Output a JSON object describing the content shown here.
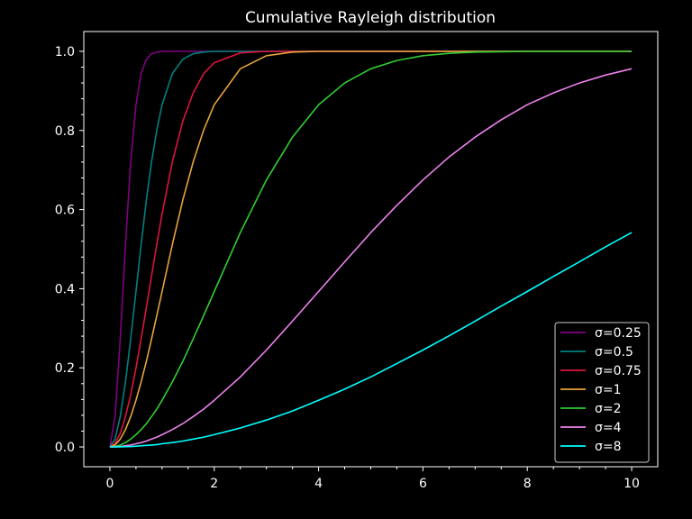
{
  "chart_data": {
    "type": "line",
    "title": "Cumulative Rayleigh distribution",
    "xlabel": "",
    "ylabel": "",
    "xlim": [
      -0.5,
      10.5
    ],
    "ylim": [
      -0.05,
      1.05
    ],
    "x_ticks": [
      0,
      2,
      4,
      6,
      8,
      10
    ],
    "y_ticks": [
      0.0,
      0.2,
      0.4,
      0.6,
      0.8,
      1.0
    ],
    "x_tick_labels": [
      "0",
      "2",
      "4",
      "6",
      "8",
      "10"
    ],
    "y_tick_labels": [
      "0.0",
      "0.2",
      "0.4",
      "0.6",
      "0.8",
      "1.0"
    ],
    "grid": false,
    "legend_position": "lower-right",
    "x": [
      0,
      0.1,
      0.2,
      0.3,
      0.4,
      0.5,
      0.6,
      0.7,
      0.8,
      0.9,
      1.0,
      1.2,
      1.4,
      1.6,
      1.8,
      2.0,
      2.5,
      3.0,
      3.5,
      4.0,
      4.5,
      5.0,
      5.5,
      6.0,
      6.5,
      7.0,
      7.5,
      8.0,
      8.5,
      9.0,
      9.5,
      10.0
    ],
    "series": [
      {
        "name": "σ=0.25",
        "color": "#800080",
        "values": [
          0.0,
          0.077,
          0.274,
          0.513,
          0.722,
          0.865,
          0.944,
          0.98,
          0.994,
          0.998,
          1.0,
          1.0,
          1.0,
          1.0,
          1.0,
          1.0,
          1.0,
          1.0,
          1.0,
          1.0,
          1.0,
          1.0,
          1.0,
          1.0,
          1.0,
          1.0,
          1.0,
          1.0,
          1.0,
          1.0,
          1.0,
          1.0
        ]
      },
      {
        "name": "σ=0.5",
        "color": "#008080",
        "values": [
          0.0,
          0.02,
          0.077,
          0.165,
          0.274,
          0.393,
          0.513,
          0.625,
          0.722,
          0.802,
          0.865,
          0.944,
          0.98,
          0.994,
          0.998,
          1.0,
          1.0,
          1.0,
          1.0,
          1.0,
          1.0,
          1.0,
          1.0,
          1.0,
          1.0,
          1.0,
          1.0,
          1.0,
          1.0,
          1.0,
          1.0,
          1.0
        ]
      },
      {
        "name": "σ=0.75",
        "color": "#dc143c",
        "values": [
          0.0,
          0.009,
          0.035,
          0.077,
          0.132,
          0.199,
          0.274,
          0.353,
          0.434,
          0.513,
          0.589,
          0.722,
          0.824,
          0.896,
          0.944,
          0.971,
          0.996,
          1.0,
          1.0,
          1.0,
          1.0,
          1.0,
          1.0,
          1.0,
          1.0,
          1.0,
          1.0,
          1.0,
          1.0,
          1.0,
          1.0,
          1.0
        ]
      },
      {
        "name": "σ=1",
        "color": "#e8a33c",
        "values": [
          0.0,
          0.005,
          0.02,
          0.044,
          0.077,
          0.118,
          0.165,
          0.217,
          0.274,
          0.333,
          0.393,
          0.513,
          0.625,
          0.722,
          0.802,
          0.865,
          0.956,
          0.989,
          0.998,
          1.0,
          1.0,
          1.0,
          1.0,
          1.0,
          1.0,
          1.0,
          1.0,
          1.0,
          1.0,
          1.0,
          1.0,
          1.0
        ]
      },
      {
        "name": "σ=2",
        "color": "#32cd32",
        "values": [
          0.0,
          0.001,
          0.005,
          0.011,
          0.02,
          0.031,
          0.044,
          0.059,
          0.077,
          0.096,
          0.118,
          0.165,
          0.217,
          0.274,
          0.333,
          0.393,
          0.542,
          0.675,
          0.783,
          0.865,
          0.92,
          0.956,
          0.977,
          0.989,
          0.995,
          0.998,
          0.999,
          1.0,
          1.0,
          1.0,
          1.0,
          1.0
        ]
      },
      {
        "name": "σ=4",
        "color": "#ee82ee",
        "values": [
          0.0,
          0.0003,
          0.001,
          0.003,
          0.005,
          0.008,
          0.011,
          0.015,
          0.02,
          0.025,
          0.031,
          0.044,
          0.059,
          0.077,
          0.096,
          0.118,
          0.177,
          0.245,
          0.318,
          0.393,
          0.468,
          0.542,
          0.611,
          0.675,
          0.733,
          0.783,
          0.827,
          0.865,
          0.895,
          0.92,
          0.94,
          0.956
        ]
      },
      {
        "name": "σ=8",
        "color": "#00ffff",
        "values": [
          0.0,
          0.0001,
          0.0003,
          0.0007,
          0.001,
          0.002,
          0.003,
          0.004,
          0.005,
          0.006,
          0.008,
          0.011,
          0.015,
          0.02,
          0.025,
          0.031,
          0.048,
          0.068,
          0.091,
          0.118,
          0.146,
          0.177,
          0.211,
          0.245,
          0.281,
          0.318,
          0.356,
          0.393,
          0.431,
          0.468,
          0.506,
          0.542
        ]
      }
    ]
  }
}
